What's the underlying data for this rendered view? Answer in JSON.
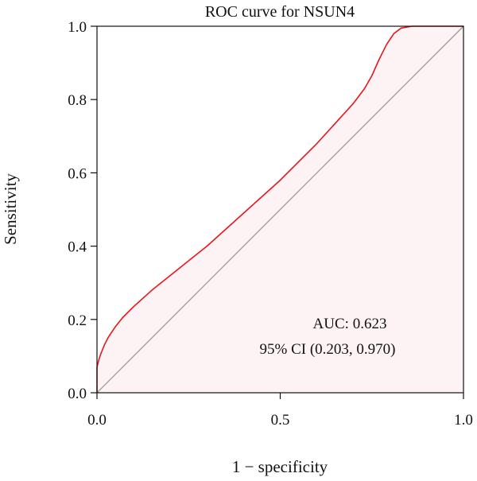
{
  "chart_data": {
    "type": "line",
    "title": "ROC curve for NSUN4",
    "xlabel": "1 − specificity",
    "ylabel": "Sensitivity",
    "xlim": [
      0,
      1
    ],
    "ylim": [
      0,
      1
    ],
    "x_ticks": [
      0,
      0.5,
      1
    ],
    "x_tick_labels": [
      "0.0",
      "0.5",
      "1.0"
    ],
    "y_ticks": [
      0,
      0.2,
      0.4,
      0.6,
      0.8,
      1
    ],
    "y_tick_labels": [
      "0.0",
      "0.2",
      "0.4",
      "0.6",
      "0.8",
      "1.0"
    ],
    "grid": false,
    "series": [
      {
        "color": "#e8161b",
        "fill": "#fdf3f5",
        "points": [
          [
            0.0,
            0.0
          ],
          [
            0.0,
            0.07
          ],
          [
            0.005,
            0.09
          ],
          [
            0.01,
            0.105
          ],
          [
            0.02,
            0.13
          ],
          [
            0.03,
            0.15
          ],
          [
            0.05,
            0.18
          ],
          [
            0.07,
            0.205
          ],
          [
            0.1,
            0.235
          ],
          [
            0.15,
            0.28
          ],
          [
            0.2,
            0.32
          ],
          [
            0.25,
            0.36
          ],
          [
            0.3,
            0.4
          ],
          [
            0.35,
            0.445
          ],
          [
            0.4,
            0.49
          ],
          [
            0.45,
            0.535
          ],
          [
            0.5,
            0.58
          ],
          [
            0.55,
            0.63
          ],
          [
            0.6,
            0.68
          ],
          [
            0.65,
            0.735
          ],
          [
            0.7,
            0.79
          ],
          [
            0.73,
            0.83
          ],
          [
            0.75,
            0.865
          ],
          [
            0.77,
            0.91
          ],
          [
            0.79,
            0.95
          ],
          [
            0.81,
            0.98
          ],
          [
            0.83,
            0.995
          ],
          [
            0.86,
            1.0
          ],
          [
            1.0,
            1.0
          ]
        ]
      }
    ],
    "reference_line": {
      "from": [
        0,
        0
      ],
      "to": [
        1,
        1
      ],
      "color": "#999999"
    },
    "annotations": [
      "AUC: 0.623",
      "95% CI (0.203, 0.970)"
    ]
  }
}
